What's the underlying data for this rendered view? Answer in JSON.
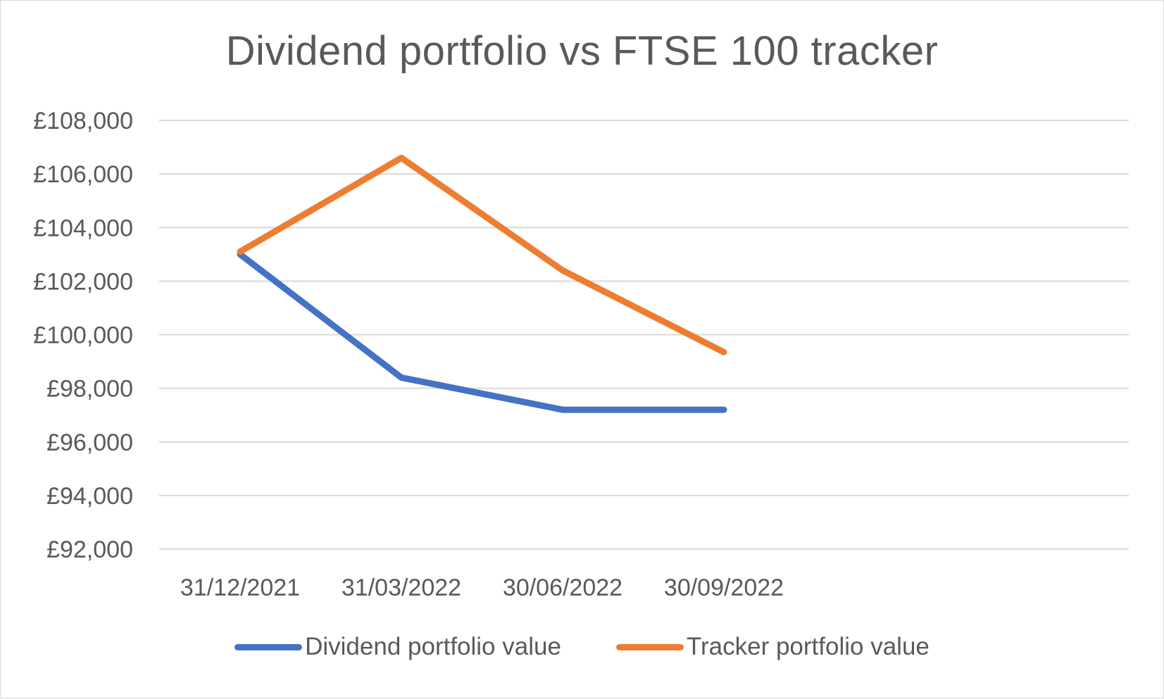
{
  "chart_data": {
    "type": "line",
    "title": "Dividend portfolio vs FTSE 100 tracker",
    "xlabel": "",
    "ylabel": "",
    "categories": [
      "31/12/2021",
      "31/03/2022",
      "30/06/2022",
      "30/09/2022"
    ],
    "y_ticks": [
      "£92,000",
      "£94,000",
      "£96,000",
      "£98,000",
      "£100,000",
      "£102,000",
      "£104,000",
      "£106,000",
      "£108,000"
    ],
    "ylim": [
      92000,
      108000
    ],
    "grid": true,
    "legend_position": "bottom",
    "series": [
      {
        "name": "Dividend portfolio value",
        "color": "#4472C4",
        "values": [
          103000,
          98400,
          97200,
          97200
        ]
      },
      {
        "name": "Tracker portfolio value",
        "color": "#ED7D31",
        "values": [
          103100,
          106600,
          102400,
          99350
        ]
      }
    ]
  }
}
